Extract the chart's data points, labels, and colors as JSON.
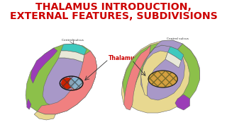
{
  "title_line1": "THALAMUS INTRODUCTION,",
  "title_line2": "EXTERNAL FEATURES, SUBDIVISIONS",
  "title_color": "#CC0000",
  "title_fontsize": 10.2,
  "title_fontweight": "bold",
  "bg_color": "#FFFFFF",
  "label_central_sulcus": "Central sulcus",
  "label_thalamus": "Thalamus",
  "label_color_thalamus": "#CC0000",
  "label_fontsize_small": 3.2,
  "label_fontsize_thalamus": 5.5,
  "left_brain_base": "#8CC04A",
  "left_purple": "#9B3CB7",
  "left_teal": "#3EC9BE",
  "left_white_strip": "#E8E8D8",
  "left_lavender": "#A898C8",
  "left_pink": "#F08080",
  "left_yellow": "#E8D890",
  "left_thal_red": "#CC2200",
  "left_thal_blue": "#7BBBD8",
  "right_brain_base": "#E8D890",
  "right_green": "#8CC04A",
  "right_teal": "#3EC9BE",
  "right_white_strip": "#E8E8D8",
  "right_lavender": "#A898C8",
  "right_pink": "#F08080",
  "right_purple": "#9B3CB7",
  "right_thal_color": "#D4A040",
  "edge_color": "#666666",
  "edge_lw": 0.4
}
